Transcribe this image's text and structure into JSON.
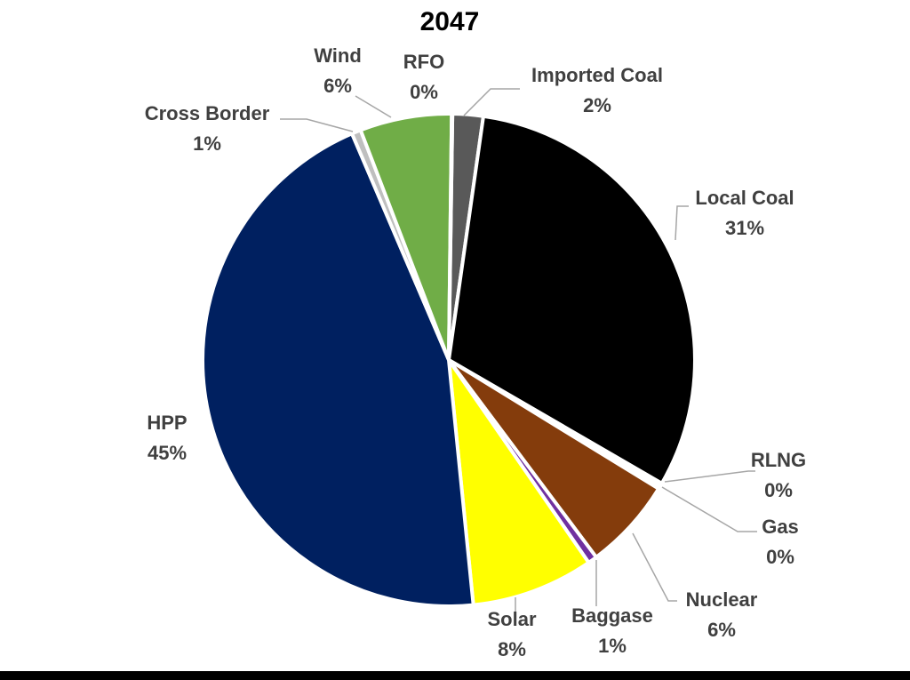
{
  "chart_data": {
    "type": "pie",
    "title": "2047",
    "slices": [
      {
        "name": "Imported Coal",
        "value": 2,
        "label": "2%",
        "color": "#595959"
      },
      {
        "name": "Local Coal",
        "value": 31,
        "label": "31%",
        "color": "#000000"
      },
      {
        "name": "RLNG",
        "value": 0.2,
        "label": "0%",
        "color": "#bfbfbf"
      },
      {
        "name": "Gas",
        "value": 0.2,
        "label": "0%",
        "color": "#a6a6a6"
      },
      {
        "name": "Nuclear",
        "value": 6,
        "label": "6%",
        "color": "#843c0c"
      },
      {
        "name": "Baggase",
        "value": 0.6,
        "label": "1%",
        "color": "#7030a0"
      },
      {
        "name": "Solar",
        "value": 8,
        "label": "8%",
        "color": "#ffff00"
      },
      {
        "name": "HPP",
        "value": 45,
        "label": "45%",
        "color": "#002060"
      },
      {
        "name": "Cross Border",
        "value": 0.6,
        "label": "1%",
        "color": "#bfbfbf"
      },
      {
        "name": "Wind",
        "value": 6,
        "label": "6%",
        "color": "#70ad47"
      },
      {
        "name": "RFO",
        "value": 0.05,
        "label": "0%",
        "color": "#ffffff"
      }
    ]
  }
}
